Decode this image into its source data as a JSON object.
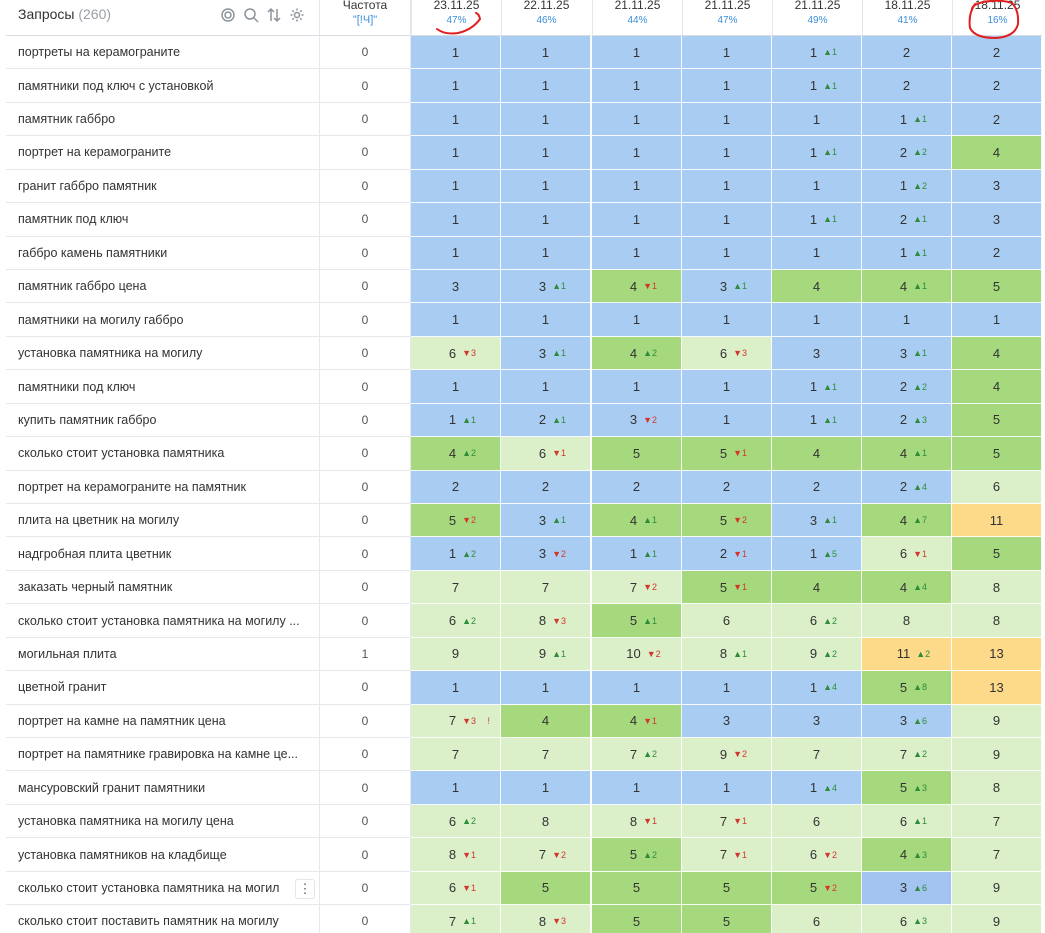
{
  "header": {
    "queries_title": "Запросы",
    "queries_count": "(260)",
    "freq_title": "Частота",
    "freq_sub": "\"[!Ч]\"",
    "dates": [
      {
        "date": "23.11.25",
        "percent": "47%"
      },
      {
        "date": "22.11.25",
        "percent": "46%"
      },
      {
        "date": "21.11.25",
        "percent": "44%"
      },
      {
        "date": "21.11.25",
        "percent": "47%"
      },
      {
        "date": "21.11.25",
        "percent": "49%"
      },
      {
        "date": "18.11.25",
        "percent": "41%"
      },
      {
        "date": "18.11.25",
        "percent": "16%"
      }
    ]
  },
  "toolbar_icons": [
    "target-icon",
    "search-icon",
    "sort-icon",
    "gear-icon"
  ],
  "row_menu_glyph": "⋮",
  "colors": {
    "c1": "#a9cdf2",
    "c2": "#dbefc9",
    "c3": "#a6d97e",
    "c4": "#fdd98a",
    "c5": "#a3c3f0",
    "annotation": "#e02020"
  },
  "rows": [
    {
      "q": "портреты на керамограните",
      "f": "0",
      "cells": [
        [
          "1",
          "",
          "",
          "c1"
        ],
        [
          "1",
          "",
          "",
          "c1"
        ],
        [
          "1",
          "",
          "",
          "c1"
        ],
        [
          "1",
          "",
          "",
          "c1"
        ],
        [
          "1",
          "▲1",
          "up",
          "c1"
        ],
        [
          "2",
          "",
          "",
          "c1"
        ],
        [
          "2",
          "",
          "",
          "c1"
        ]
      ]
    },
    {
      "q": "памятники под ключ с установкой",
      "f": "0",
      "cells": [
        [
          "1",
          "",
          "",
          "c1"
        ],
        [
          "1",
          "",
          "",
          "c1"
        ],
        [
          "1",
          "",
          "",
          "c1"
        ],
        [
          "1",
          "",
          "",
          "c1"
        ],
        [
          "1",
          "▲1",
          "up",
          "c1"
        ],
        [
          "2",
          "",
          "",
          "c1"
        ],
        [
          "2",
          "",
          "",
          "c1"
        ]
      ]
    },
    {
      "q": "памятник габбро",
      "f": "0",
      "cells": [
        [
          "1",
          "",
          "",
          "c1"
        ],
        [
          "1",
          "",
          "",
          "c1"
        ],
        [
          "1",
          "",
          "",
          "c1"
        ],
        [
          "1",
          "",
          "",
          "c1"
        ],
        [
          "1",
          "",
          "",
          "c1"
        ],
        [
          "1",
          "▲1",
          "up",
          "c1"
        ],
        [
          "2",
          "",
          "",
          "c1"
        ]
      ]
    },
    {
      "q": "портрет на керамограните",
      "f": "0",
      "cells": [
        [
          "1",
          "",
          "",
          "c1"
        ],
        [
          "1",
          "",
          "",
          "c1"
        ],
        [
          "1",
          "",
          "",
          "c1"
        ],
        [
          "1",
          "",
          "",
          "c1"
        ],
        [
          "1",
          "▲1",
          "up",
          "c1"
        ],
        [
          "2",
          "▲2",
          "up",
          "c1"
        ],
        [
          "4",
          "",
          "",
          "c3"
        ]
      ]
    },
    {
      "q": "гранит габбро памятник",
      "f": "0",
      "cells": [
        [
          "1",
          "",
          "",
          "c1"
        ],
        [
          "1",
          "",
          "",
          "c1"
        ],
        [
          "1",
          "",
          "",
          "c1"
        ],
        [
          "1",
          "",
          "",
          "c1"
        ],
        [
          "1",
          "",
          "",
          "c1"
        ],
        [
          "1",
          "▲2",
          "up",
          "c1"
        ],
        [
          "3",
          "",
          "",
          "c1"
        ]
      ]
    },
    {
      "q": "памятник под ключ",
      "f": "0",
      "cells": [
        [
          "1",
          "",
          "",
          "c1"
        ],
        [
          "1",
          "",
          "",
          "c1"
        ],
        [
          "1",
          "",
          "",
          "c1"
        ],
        [
          "1",
          "",
          "",
          "c1"
        ],
        [
          "1",
          "▲1",
          "up",
          "c1"
        ],
        [
          "2",
          "▲1",
          "up",
          "c1"
        ],
        [
          "3",
          "",
          "",
          "c1"
        ]
      ]
    },
    {
      "q": "габбро камень памятники",
      "f": "0",
      "cells": [
        [
          "1",
          "",
          "",
          "c1"
        ],
        [
          "1",
          "",
          "",
          "c1"
        ],
        [
          "1",
          "",
          "",
          "c1"
        ],
        [
          "1",
          "",
          "",
          "c1"
        ],
        [
          "1",
          "",
          "",
          "c1"
        ],
        [
          "1",
          "▲1",
          "up",
          "c1"
        ],
        [
          "2",
          "",
          "",
          "c1"
        ]
      ]
    },
    {
      "q": "памятник габбро цена",
      "f": "0",
      "cells": [
        [
          "3",
          "",
          "",
          "c1"
        ],
        [
          "3",
          "▲1",
          "up",
          "c1"
        ],
        [
          "4",
          "▼1",
          "dn",
          "c3"
        ],
        [
          "3",
          "▲1",
          "up",
          "c1"
        ],
        [
          "4",
          "",
          "",
          "c3"
        ],
        [
          "4",
          "▲1",
          "up",
          "c3"
        ],
        [
          "5",
          "",
          "",
          "c3"
        ]
      ]
    },
    {
      "q": "памятники на могилу габбро",
      "f": "0",
      "cells": [
        [
          "1",
          "",
          "",
          "c1"
        ],
        [
          "1",
          "",
          "",
          "c1"
        ],
        [
          "1",
          "",
          "",
          "c1"
        ],
        [
          "1",
          "",
          "",
          "c1"
        ],
        [
          "1",
          "",
          "",
          "c1"
        ],
        [
          "1",
          "",
          "",
          "c1"
        ],
        [
          "1",
          "",
          "",
          "c1"
        ]
      ]
    },
    {
      "q": "установка памятника на могилу",
      "f": "0",
      "cells": [
        [
          "6",
          "▼3",
          "dn",
          "c2"
        ],
        [
          "3",
          "▲1",
          "up",
          "c1"
        ],
        [
          "4",
          "▲2",
          "up",
          "c3"
        ],
        [
          "6",
          "▼3",
          "dn",
          "c2"
        ],
        [
          "3",
          "",
          "",
          "c1"
        ],
        [
          "3",
          "▲1",
          "up",
          "c1"
        ],
        [
          "4",
          "",
          "",
          "c3"
        ]
      ]
    },
    {
      "q": "памятники под ключ",
      "f": "0",
      "cells": [
        [
          "1",
          "",
          "",
          "c1"
        ],
        [
          "1",
          "",
          "",
          "c1"
        ],
        [
          "1",
          "",
          "",
          "c1"
        ],
        [
          "1",
          "",
          "",
          "c1"
        ],
        [
          "1",
          "▲1",
          "up",
          "c1"
        ],
        [
          "2",
          "▲2",
          "up",
          "c1"
        ],
        [
          "4",
          "",
          "",
          "c3"
        ]
      ]
    },
    {
      "q": "купить памятник габбро",
      "f": "0",
      "cells": [
        [
          "1",
          "▲1",
          "up",
          "c1"
        ],
        [
          "2",
          "▲1",
          "up",
          "c1"
        ],
        [
          "3",
          "▼2",
          "dn",
          "c1"
        ],
        [
          "1",
          "",
          "",
          "c1"
        ],
        [
          "1",
          "▲1",
          "up",
          "c1"
        ],
        [
          "2",
          "▲3",
          "up",
          "c1"
        ],
        [
          "5",
          "",
          "",
          "c3"
        ]
      ]
    },
    {
      "q": "сколько стоит установка памятника",
      "f": "0",
      "cells": [
        [
          "4",
          "▲2",
          "up",
          "c3"
        ],
        [
          "6",
          "▼1",
          "dn",
          "c2"
        ],
        [
          "5",
          "",
          "",
          "c3"
        ],
        [
          "5",
          "▼1",
          "dn",
          "c3"
        ],
        [
          "4",
          "",
          "",
          "c3"
        ],
        [
          "4",
          "▲1",
          "up",
          "c3"
        ],
        [
          "5",
          "",
          "",
          "c3"
        ]
      ]
    },
    {
      "q": "портрет на керамограните на памятник",
      "f": "0",
      "cells": [
        [
          "2",
          "",
          "",
          "c1"
        ],
        [
          "2",
          "",
          "",
          "c1"
        ],
        [
          "2",
          "",
          "",
          "c1"
        ],
        [
          "2",
          "",
          "",
          "c1"
        ],
        [
          "2",
          "",
          "",
          "c1"
        ],
        [
          "2",
          "▲4",
          "up",
          "c1"
        ],
        [
          "6",
          "",
          "",
          "c2"
        ]
      ]
    },
    {
      "q": "плита на цветник на могилу",
      "f": "0",
      "cells": [
        [
          "5",
          "▼2",
          "dn",
          "c3"
        ],
        [
          "3",
          "▲1",
          "up",
          "c1"
        ],
        [
          "4",
          "▲1",
          "up",
          "c3"
        ],
        [
          "5",
          "▼2",
          "dn",
          "c3"
        ],
        [
          "3",
          "▲1",
          "up",
          "c1"
        ],
        [
          "4",
          "▲7",
          "up",
          "c3"
        ],
        [
          "11",
          "",
          "",
          "c4"
        ]
      ]
    },
    {
      "q": "надгробная плита цветник",
      "f": "0",
      "cells": [
        [
          "1",
          "▲2",
          "up",
          "c1"
        ],
        [
          "3",
          "▼2",
          "dn",
          "c1"
        ],
        [
          "1",
          "▲1",
          "up",
          "c1"
        ],
        [
          "2",
          "▼1",
          "dn",
          "c1"
        ],
        [
          "1",
          "▲5",
          "up",
          "c1"
        ],
        [
          "6",
          "▼1",
          "dn",
          "c2"
        ],
        [
          "5",
          "",
          "",
          "c3"
        ]
      ]
    },
    {
      "q": "заказать черный памятник",
      "f": "0",
      "cells": [
        [
          "7",
          "",
          "",
          "c2"
        ],
        [
          "7",
          "",
          "",
          "c2"
        ],
        [
          "7",
          "▼2",
          "dn",
          "c2"
        ],
        [
          "5",
          "▼1",
          "dn",
          "c3"
        ],
        [
          "4",
          "",
          "",
          "c3"
        ],
        [
          "4",
          "▲4",
          "up",
          "c3"
        ],
        [
          "8",
          "",
          "",
          "c2"
        ]
      ]
    },
    {
      "q": "сколько стоит установка памятника на могилу ...",
      "f": "0",
      "cells": [
        [
          "6",
          "▲2",
          "up",
          "c2"
        ],
        [
          "8",
          "▼3",
          "dn",
          "c2"
        ],
        [
          "5",
          "▲1",
          "up",
          "c3"
        ],
        [
          "6",
          "",
          "",
          "c2"
        ],
        [
          "6",
          "▲2",
          "up",
          "c2"
        ],
        [
          "8",
          "",
          "",
          "c2"
        ],
        [
          "8",
          "",
          "",
          "c2"
        ]
      ]
    },
    {
      "q": "могильная плита",
      "f": "1",
      "cells": [
        [
          "9",
          "",
          "",
          "c2"
        ],
        [
          "9",
          "▲1",
          "up",
          "c2"
        ],
        [
          "10",
          "▼2",
          "dn",
          "c2"
        ],
        [
          "8",
          "▲1",
          "up",
          "c2"
        ],
        [
          "9",
          "▲2",
          "up",
          "c2"
        ],
        [
          "11",
          "▲2",
          "up",
          "c4"
        ],
        [
          "13",
          "",
          "",
          "c4"
        ]
      ]
    },
    {
      "q": "цветной гранит",
      "f": "0",
      "cells": [
        [
          "1",
          "",
          "",
          "c1"
        ],
        [
          "1",
          "",
          "",
          "c1"
        ],
        [
          "1",
          "",
          "",
          "c1"
        ],
        [
          "1",
          "",
          "",
          "c1"
        ],
        [
          "1",
          "▲4",
          "up",
          "c1"
        ],
        [
          "5",
          "▲8",
          "up",
          "c3"
        ],
        [
          "13",
          "",
          "",
          "c4"
        ]
      ]
    },
    {
      "q": "портрет на камне на памятник цена",
      "f": "0",
      "cells": [
        [
          "7",
          "▼3",
          "dn",
          "c2"
        ],
        [
          "4",
          "",
          "",
          "c3"
        ],
        [
          "4",
          "▼1",
          "dn",
          "c3"
        ],
        [
          "3",
          "",
          "",
          "c1"
        ],
        [
          "3",
          "",
          "",
          "c1"
        ],
        [
          "3",
          "▲6",
          "up",
          "c1"
        ],
        [
          "9",
          "",
          "",
          "c2"
        ]
      ],
      "flag": "!"
    },
    {
      "q": "портрет на памятнике гравировка на камне це...",
      "f": "0",
      "cells": [
        [
          "7",
          "",
          "",
          "c2"
        ],
        [
          "7",
          "",
          "",
          "c2"
        ],
        [
          "7",
          "▲2",
          "up",
          "c2"
        ],
        [
          "9",
          "▼2",
          "dn",
          "c2"
        ],
        [
          "7",
          "",
          "",
          "c2"
        ],
        [
          "7",
          "▲2",
          "up",
          "c2"
        ],
        [
          "9",
          "",
          "",
          "c2"
        ]
      ]
    },
    {
      "q": "мансуровский гранит памятники",
      "f": "0",
      "cells": [
        [
          "1",
          "",
          "",
          "c1"
        ],
        [
          "1",
          "",
          "",
          "c1"
        ],
        [
          "1",
          "",
          "",
          "c1"
        ],
        [
          "1",
          "",
          "",
          "c1"
        ],
        [
          "1",
          "▲4",
          "up",
          "c1"
        ],
        [
          "5",
          "▲3",
          "up",
          "c3"
        ],
        [
          "8",
          "",
          "",
          "c2"
        ]
      ]
    },
    {
      "q": "установка памятника на могилу цена",
      "f": "0",
      "cells": [
        [
          "6",
          "▲2",
          "up",
          "c2"
        ],
        [
          "8",
          "",
          "",
          "c2"
        ],
        [
          "8",
          "▼1",
          "dn",
          "c2"
        ],
        [
          "7",
          "▼1",
          "dn",
          "c2"
        ],
        [
          "6",
          "",
          "",
          "c2"
        ],
        [
          "6",
          "▲1",
          "up",
          "c2"
        ],
        [
          "7",
          "",
          "",
          "c2"
        ]
      ]
    },
    {
      "q": "установка памятников на кладбище",
      "f": "0",
      "cells": [
        [
          "8",
          "▼1",
          "dn",
          "c2"
        ],
        [
          "7",
          "▼2",
          "dn",
          "c2"
        ],
        [
          "5",
          "▲2",
          "up",
          "c3"
        ],
        [
          "7",
          "▼1",
          "dn",
          "c2"
        ],
        [
          "6",
          "▼2",
          "dn",
          "c2"
        ],
        [
          "4",
          "▲3",
          "up",
          "c3"
        ],
        [
          "7",
          "",
          "",
          "c2"
        ]
      ]
    },
    {
      "q": "сколько стоит установка памятника на могил",
      "f": "0",
      "cells": [
        [
          "6",
          "▼1",
          "dn",
          "c2"
        ],
        [
          "5",
          "",
          "",
          "c3"
        ],
        [
          "5",
          "",
          "",
          "c3"
        ],
        [
          "5",
          "",
          "",
          "c3"
        ],
        [
          "5",
          "▼2",
          "dn",
          "c3"
        ],
        [
          "3",
          "▲6",
          "up",
          "c5"
        ],
        [
          "9",
          "",
          "",
          "c2"
        ]
      ],
      "menu": true
    },
    {
      "q": "сколько стоит поставить памятник на могилу",
      "f": "0",
      "cells": [
        [
          "7",
          "▲1",
          "up",
          "c2"
        ],
        [
          "8",
          "▼3",
          "dn",
          "c2"
        ],
        [
          "5",
          "",
          "",
          "c3"
        ],
        [
          "5",
          "",
          "",
          "c3"
        ],
        [
          "6",
          "",
          "",
          "c2"
        ],
        [
          "6",
          "▲3",
          "up",
          "c2"
        ],
        [
          "9",
          "",
          "",
          "c2"
        ]
      ]
    }
  ]
}
